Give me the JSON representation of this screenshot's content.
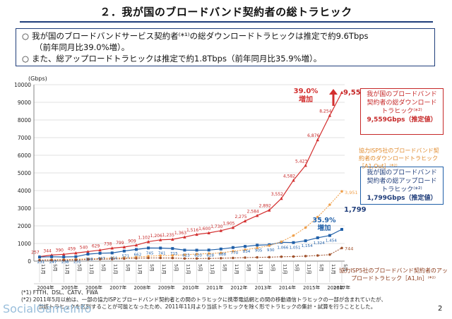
{
  "page": {
    "title": "２．我が国のブロードバンド契約者の総トラヒック",
    "summary": {
      "line1": "我が国のブロードバンドサービス契約者⁽*¹⁾の総ダウンロードトラヒックは推定で約9.6Tbps",
      "line1_bullet": "○",
      "line2": "（前年同月比39.0%増）。",
      "line3": "また、総アップロードトラヒックは推定で約1.8Tbps（前年同月比35.9%増）。",
      "line3_bullet": "○"
    },
    "callouts": {
      "download": {
        "line1": "我が国のブロードバンド",
        "line2": "契約者の総ダウンロード",
        "line3": "トラヒック⁽*²⁾",
        "value": "9,559Gbps（推定値）"
      },
      "upload": {
        "line1": "我が国のブロードバンド",
        "line2": "契約者の総アップロード",
        "line3": "トラヒック⁽*²⁾",
        "value": "1,799Gbps（推定値）"
      },
      "a1out": "協力ISP5社のブロードバンド契約者のダウンロードトラヒック［A1,Out］⁽*²⁾",
      "a1in": "協力ISP5社のブロードバンド契約者のアップロードトラヒック［A1,In］⁽*²⁾"
    },
    "footnotes": {
      "f1": "(*1) FTTH、DSL、CATV、FWA",
      "f2": "(*2) 2011年5月以前は、一部の協力ISPとブロードバンド契約者との間のトラヒックに携帯電話網との間の移動通信トラヒックの一部が含まれていたが、",
      "f3": "当該トラヒックを区別することが可能となったため、2011年11月より当該トラヒックを除く形でトラヒックの集計・試算を行うこととした。"
    },
    "watermark": "SocialGameInfo",
    "page_number": "2"
  },
  "chart_data": {
    "type": "line",
    "ylabel": "(Gbps)",
    "ylim": [
      0,
      10000
    ],
    "yticks": [
      0,
      1000,
      2000,
      3000,
      4000,
      5000,
      6000,
      7000,
      8000,
      9000,
      10000
    ],
    "ytick_labels": [
      "0",
      "1000",
      "2000",
      "3000",
      "4000",
      "5000",
      "6000",
      "7000",
      "8000",
      "9000",
      "10000"
    ],
    "x_month_labels": [
      "11月",
      "5月",
      "11月",
      "5月",
      "11月",
      "5月",
      "11月",
      "5月",
      "11月",
      "5月",
      "11月",
      "5月",
      "11月",
      "5月",
      "11月",
      "5月",
      "11月",
      "5月",
      "11月",
      "5月",
      "11月",
      "5月",
      "11月",
      "5月",
      "11月",
      "5月"
    ],
    "x_year_labels": [
      "2004年",
      "2005年",
      "2006年",
      "2007年",
      "2008年",
      "2009年",
      "2010年",
      "2011年",
      "2012年",
      "2013年",
      "2014年",
      "2015年",
      "2016年",
      "2017年"
    ],
    "colors": {
      "download": "#d32f2f",
      "upload": "#1f5fa8",
      "a1out": "#f0a04b",
      "a1in": "#a0522d",
      "grid": "#d9d9d9"
    },
    "series": [
      {
        "key": "download",
        "values": [
          257,
          344,
          390,
          459,
          540,
          629,
          738,
          799,
          909,
          1102,
          1206,
          1235,
          1363,
          1516,
          1600,
          1730,
          1905,
          2275,
          2584,
          2892,
          3552,
          4582,
          5423,
          6876,
          8254,
          9559
        ],
        "labels": [
          "257",
          "344",
          "390",
          "459",
          "540",
          "629",
          "738",
          "799",
          "909",
          "1,102",
          "1,206",
          "1,235",
          "1,363",
          "1,516",
          "1,600",
          "1,730",
          "1,905",
          "2,275",
          "2,584",
          "2,892",
          "3,552",
          "4,582",
          "5,423",
          "6,876",
          "8,254",
          "9,559"
        ]
      },
      {
        "key": "upload",
        "values": [
          231,
          247,
          236,
          251,
          398,
          447,
          464,
          571,
          662,
          745,
          741,
          715,
          623,
          620,
          628,
          688,
          770,
          834,
          905,
          930,
          1066,
          1051,
          1154,
          1324,
          1454,
          1799
        ],
        "labels": [
          "231",
          "247",
          "236",
          "251",
          "398",
          "447",
          "464",
          "571",
          "662",
          "745",
          "741",
          "715",
          "623",
          "620",
          "628",
          "688",
          "770",
          "834",
          "905",
          "930",
          "1,066",
          "1,051",
          "1,154",
          "1,324",
          "1,454",
          "1,799"
        ]
      },
      {
        "key": "a1out",
        "values": [
          60,
          80,
          90,
          110,
          130,
          150,
          180,
          200,
          230,
          280,
          310,
          320,
          360,
          400,
          430,
          470,
          560,
          650,
          750,
          880,
          1100,
          1450,
          1900,
          2500,
          3200,
          3951
        ],
        "labels": [
          "3,951"
        ]
      },
      {
        "key": "a1in",
        "values": [
          55,
          60,
          58,
          62,
          100,
          110,
          115,
          140,
          160,
          180,
          180,
          175,
          150,
          150,
          152,
          165,
          180,
          200,
          215,
          225,
          250,
          260,
          285,
          320,
          370,
          744
        ],
        "labels": [
          "744"
        ]
      }
    ],
    "annotations": {
      "download_growth": "39.0%",
      "download_growth_sub": "増加",
      "upload_growth": "35.9%",
      "upload_growth_sub": "増加",
      "download_final": "9,559",
      "upload_final": "1,799"
    }
  }
}
